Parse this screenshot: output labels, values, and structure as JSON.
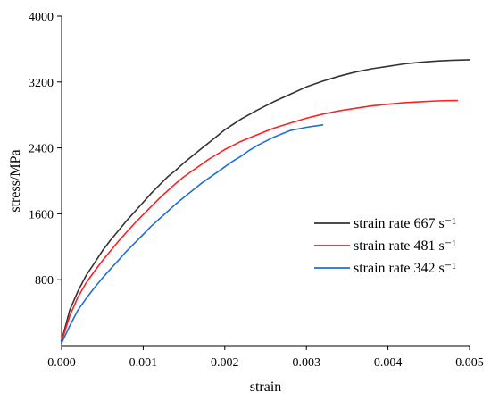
{
  "chart_data": {
    "type": "line",
    "title": "",
    "xlabel": "strain",
    "ylabel": "stress/MPa",
    "xlim": [
      0,
      0.005
    ],
    "ylim": [
      0,
      4000
    ],
    "x_ticks": [
      0,
      0.001,
      0.002,
      0.003,
      0.004,
      0.005
    ],
    "x_tick_labels": [
      "0.000",
      "0.001",
      "0.002",
      "0.003",
      "0.004",
      "0.005"
    ],
    "y_ticks": [
      800,
      1600,
      2400,
      3200,
      4000
    ],
    "y_tick_labels": [
      "800",
      "1600",
      "2400",
      "3200",
      "4000"
    ],
    "grid": false,
    "legend_position": "center-right",
    "series": [
      {
        "name": "strain rate 667 s⁻¹",
        "color": "#333333",
        "x": [
          0,
          0.0001,
          0.0002,
          0.0003,
          0.0004,
          0.0005,
          0.0006,
          0.0007,
          0.0008,
          0.0009,
          0.001,
          0.0011,
          0.0012,
          0.0013,
          0.0014,
          0.0015,
          0.0016,
          0.0017,
          0.0018,
          0.0019,
          0.002,
          0.0022,
          0.0024,
          0.0026,
          0.0028,
          0.003,
          0.0032,
          0.0034,
          0.0036,
          0.0038,
          0.004,
          0.0042,
          0.0044,
          0.0046,
          0.0048,
          0.005
        ],
        "y": [
          60,
          430,
          660,
          850,
          1000,
          1150,
          1280,
          1400,
          1520,
          1630,
          1740,
          1850,
          1950,
          2050,
          2130,
          2220,
          2300,
          2380,
          2460,
          2540,
          2620,
          2750,
          2860,
          2960,
          3050,
          3140,
          3210,
          3270,
          3320,
          3360,
          3390,
          3420,
          3440,
          3455,
          3465,
          3470
        ]
      },
      {
        "name": "strain rate 481 s⁻¹",
        "color": "#ff2020",
        "x": [
          0,
          0.0001,
          0.0002,
          0.0003,
          0.0004,
          0.0005,
          0.0006,
          0.0007,
          0.0008,
          0.0009,
          0.001,
          0.0011,
          0.0012,
          0.0013,
          0.0014,
          0.0015,
          0.0016,
          0.0017,
          0.0018,
          0.0019,
          0.002,
          0.0022,
          0.0024,
          0.0026,
          0.0028,
          0.003,
          0.0032,
          0.0034,
          0.0036,
          0.0038,
          0.004,
          0.0042,
          0.0044,
          0.0046,
          0.0048,
          0.00485
        ],
        "y": [
          50,
          360,
          590,
          760,
          900,
          1030,
          1150,
          1270,
          1380,
          1490,
          1590,
          1690,
          1790,
          1880,
          1970,
          2050,
          2120,
          2190,
          2260,
          2320,
          2380,
          2480,
          2560,
          2640,
          2700,
          2760,
          2810,
          2850,
          2880,
          2910,
          2930,
          2950,
          2960,
          2970,
          2975,
          2975
        ]
      },
      {
        "name": "strain rate 342 s⁻¹",
        "color": "#1e6fd9",
        "x": [
          0,
          0.0001,
          0.0002,
          0.0003,
          0.0004,
          0.0005,
          0.0006,
          0.0007,
          0.0008,
          0.0009,
          0.001,
          0.0011,
          0.0012,
          0.0013,
          0.0014,
          0.0015,
          0.0016,
          0.0017,
          0.0018,
          0.0019,
          0.002,
          0.0021,
          0.0022,
          0.0023,
          0.0024,
          0.0025,
          0.0026,
          0.0027,
          0.0028,
          0.0029,
          0.003,
          0.0031,
          0.0032
        ],
        "y": [
          30,
          240,
          430,
          570,
          700,
          820,
          930,
          1040,
          1150,
          1250,
          1350,
          1450,
          1540,
          1630,
          1720,
          1800,
          1880,
          1960,
          2030,
          2100,
          2170,
          2240,
          2300,
          2370,
          2430,
          2480,
          2530,
          2570,
          2610,
          2630,
          2650,
          2665,
          2680
        ]
      }
    ]
  }
}
